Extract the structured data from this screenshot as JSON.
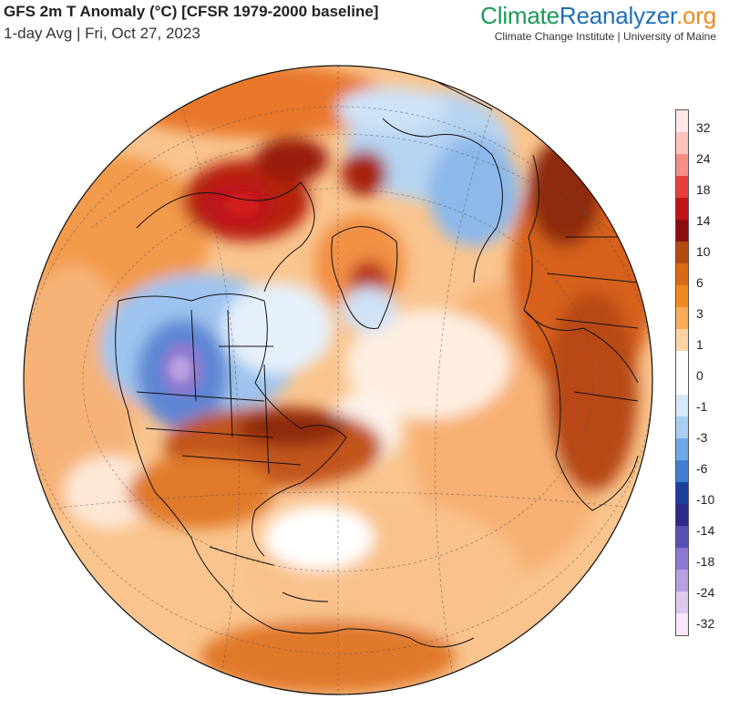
{
  "header": {
    "title": "GFS 2m T Anomaly (°C) [CFSR 1979-2000 baseline]",
    "subtitle": "1-day Avg | Fri, Oct 27, 2023"
  },
  "brand": {
    "part1": "Climate",
    "part2": "Reanalyzer",
    "part3": ".org",
    "tagline": "Climate Change Institute | University of Maine"
  },
  "colors": {
    "brand_green": "#1a9a5a",
    "brand_blue": "#1f6fb8",
    "brand_orange": "#f08a1c"
  },
  "colorbar": {
    "labels": [
      "32",
      "24",
      "18",
      "14",
      "10",
      "6",
      "3",
      "1",
      "0",
      "-1",
      "-3",
      "-6",
      "-10",
      "-14",
      "-18",
      "-24",
      "-32"
    ],
    "colors": [
      "#fde8e6",
      "#fbc4bc",
      "#f48f86",
      "#e8403c",
      "#c0141a",
      "#8e0c10",
      "#b34a10",
      "#d86a14",
      "#f08a20",
      "#f7ac5c",
      "#fbd2a6",
      "#ffffff",
      "#ffffff",
      "#d6e8fb",
      "#a8cef4",
      "#6fa8e6",
      "#3f7fd0",
      "#1c3f9e",
      "#2c2a8a",
      "#5a50b4",
      "#8c78d0",
      "#b8a0e0",
      "#dcc8ef",
      "#f6e8f6"
    ]
  }
}
